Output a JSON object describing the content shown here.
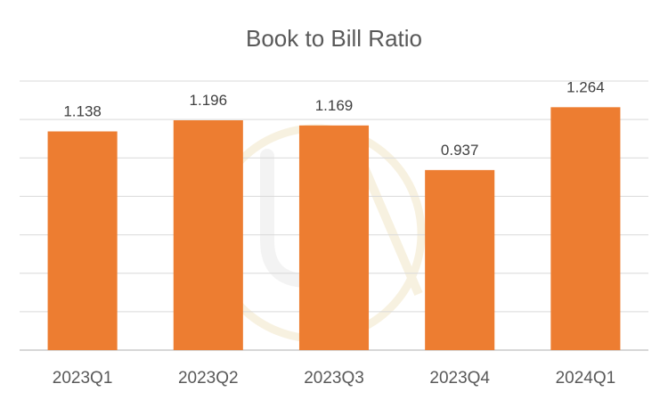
{
  "chart_data": {
    "type": "bar",
    "title": "Book to Bill Ratio",
    "categories": [
      "2023Q1",
      "2023Q2",
      "2023Q3",
      "2023Q4",
      "2024Q1"
    ],
    "values": [
      1.138,
      1.196,
      1.169,
      0.937,
      1.264
    ],
    "data_labels": [
      "1.138",
      "1.196",
      "1.169",
      "0.937",
      "1.264"
    ],
    "xlabel": "",
    "ylabel": "",
    "ylim": [
      0,
      1.4
    ],
    "y_gridlines": [
      0,
      0.2,
      0.4,
      0.6,
      0.8,
      1.0,
      1.2,
      1.4
    ],
    "y_tick_labels_shown": false,
    "grid": true,
    "legend": "none"
  },
  "colors": {
    "bar": "#ED7D31",
    "gridline": "#D9D9D9",
    "axis_line": "#BFBFBF",
    "title_text": "#595959",
    "label_text": "#404040",
    "watermark": "#F2E6C8"
  },
  "watermark": {
    "icon": "logo-watermark"
  }
}
